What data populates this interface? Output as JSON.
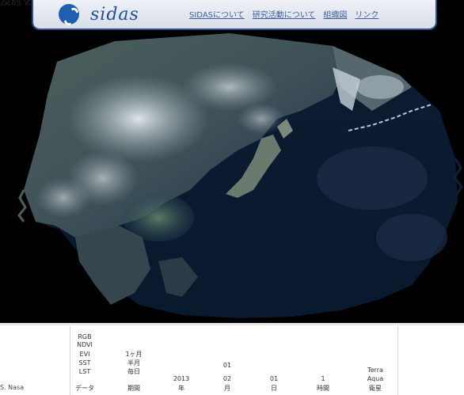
{
  "header": {
    "logo_text": "sidas",
    "nav": [
      "SIDASについて",
      "研究活動について",
      "組織図",
      "リンク"
    ]
  },
  "top_cut_text": "及討を行った.",
  "credit": "S. Nasa",
  "table": {
    "col1": [
      "RGB",
      "NDVI",
      "EVI",
      "SST",
      "LST",
      "データ"
    ],
    "col2": [
      "1ヶ月",
      "半月",
      "毎日",
      "期間"
    ],
    "year": [
      "2013",
      "年"
    ],
    "month": [
      "01",
      "02",
      "月"
    ],
    "day": [
      "01",
      "日"
    ],
    "hour": [
      "1",
      "時間"
    ],
    "satellite": [
      "Terra",
      "Aqua",
      "衛星"
    ]
  }
}
